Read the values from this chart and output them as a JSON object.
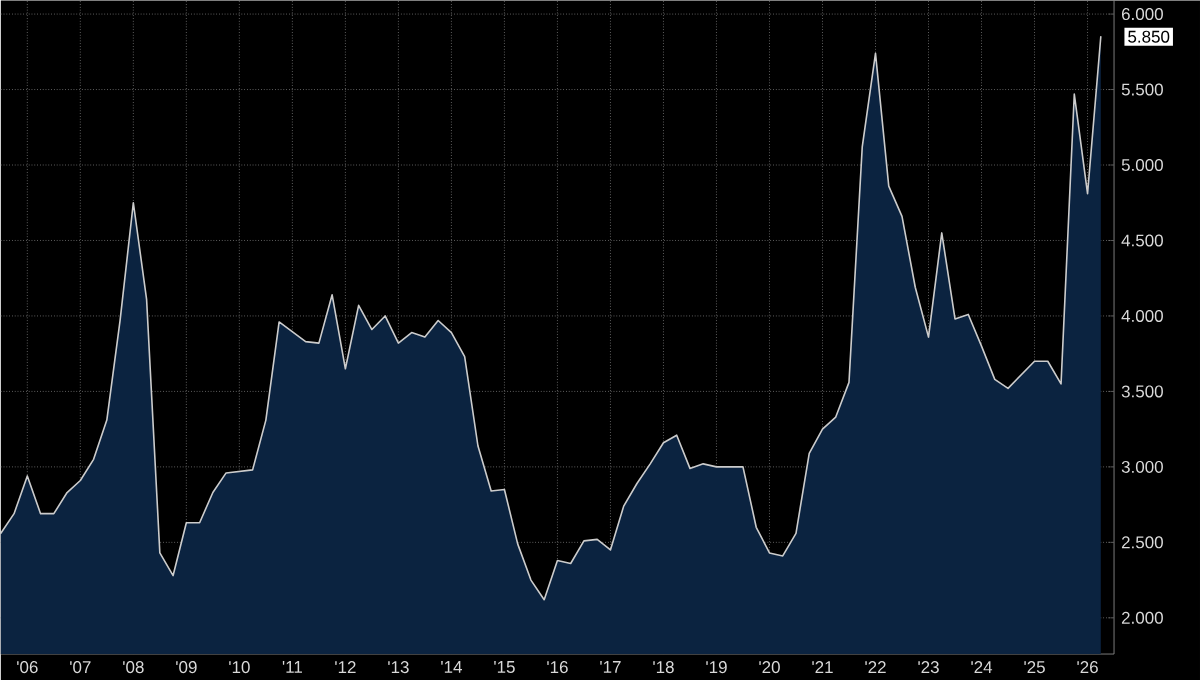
{
  "chart_data": {
    "type": "area",
    "x": [
      "2006-01",
      "2006-04",
      "2006-07",
      "2006-10",
      "2007-01",
      "2007-04",
      "2007-07",
      "2007-10",
      "2008-01",
      "2008-04",
      "2008-07",
      "2008-10",
      "2009-01",
      "2009-04",
      "2009-07",
      "2009-10",
      "2010-01",
      "2010-04",
      "2010-10",
      "2011-01",
      "2011-04",
      "2011-10",
      "2012-01",
      "2012-04",
      "2012-07",
      "2012-10",
      "2013-01",
      "2013-04",
      "2013-07",
      "2013-10",
      "2014-01",
      "2014-04",
      "2014-07",
      "2014-10",
      "2015-01",
      "2015-04",
      "2015-07",
      "2015-10",
      "2016-01",
      "2016-04",
      "2016-07",
      "2016-10",
      "2017-01",
      "2017-04",
      "2017-07",
      "2017-10",
      "2018-01",
      "2018-04",
      "2018-07",
      "2018-10",
      "2019-01",
      "2019-04",
      "2019-07",
      "2020-01",
      "2020-04",
      "2020-07",
      "2020-10",
      "2021-01",
      "2021-04",
      "2021-07",
      "2021-10",
      "2022-01",
      "2022-04",
      "2022-07",
      "2022-10",
      "2023-01",
      "2023-04",
      "2023-07",
      "2023-10",
      "2024-01",
      "2024-04",
      "2024-07",
      "2024-10",
      "2025-01",
      "2025-07",
      "2025-10",
      "2026-01",
      "2026-04",
      "2026-07",
      "2026-10"
    ],
    "series": [
      {
        "color": "#0b2340",
        "values": [
          2.56,
          2.69,
          2.94,
          2.69,
          2.69,
          2.83,
          2.91,
          3.05,
          3.31,
          3.97,
          4.75,
          4.11,
          2.43,
          2.28,
          2.63,
          2.63,
          2.83,
          2.96,
          2.98,
          3.31,
          3.96,
          3.83,
          3.82,
          4.14,
          3.65,
          4.07,
          3.91,
          4.0,
          3.82,
          3.89,
          3.86,
          3.97,
          3.89,
          3.73,
          3.14,
          2.84,
          2.85,
          2.49,
          2.25,
          2.12,
          2.38,
          2.36,
          2.51,
          2.52,
          2.45,
          2.74,
          2.89,
          3.02,
          3.16,
          3.21,
          2.99,
          3.02,
          3.0,
          3.0,
          2.6,
          2.43,
          2.41,
          2.56,
          3.09,
          3.25,
          3.33,
          3.56,
          5.12,
          5.74,
          4.86,
          4.66,
          4.19,
          3.86,
          4.55,
          3.98,
          4.01,
          3.8,
          3.58,
          3.52,
          3.7,
          3.7,
          3.55,
          5.47,
          4.81,
          5.85
        ]
      }
    ],
    "xlim": [
      "2006-01",
      "2027-01"
    ],
    "xticks": [
      {
        "value": "2006-07",
        "label": "'06"
      },
      {
        "value": "2007-07",
        "label": "'07"
      },
      {
        "value": "2008-07",
        "label": "'08"
      },
      {
        "value": "2009-07",
        "label": "'09"
      },
      {
        "value": "2010-07",
        "label": "'10"
      },
      {
        "value": "2011-07",
        "label": "'11"
      },
      {
        "value": "2012-07",
        "label": "'12"
      },
      {
        "value": "2013-07",
        "label": "'13"
      },
      {
        "value": "2014-07",
        "label": "'14"
      },
      {
        "value": "2015-07",
        "label": "'15"
      },
      {
        "value": "2016-07",
        "label": "'16"
      },
      {
        "value": "2017-07",
        "label": "'17"
      },
      {
        "value": "2018-07",
        "label": "'18"
      },
      {
        "value": "2019-07",
        "label": "'19"
      },
      {
        "value": "2020-07",
        "label": "'20"
      },
      {
        "value": "2021-07",
        "label": "'21"
      },
      {
        "value": "2022-07",
        "label": "'22"
      },
      {
        "value": "2023-07",
        "label": "'23"
      },
      {
        "value": "2024-07",
        "label": "'24"
      },
      {
        "value": "2025-07",
        "label": "'25"
      },
      {
        "value": "2026-07",
        "label": "'26"
      }
    ],
    "ylim": [
      1.76,
      6.09
    ],
    "yticks": [
      {
        "value": 2,
        "label": "2.000"
      },
      {
        "value": 2.5,
        "label": "2.500"
      },
      {
        "value": 3,
        "label": "3.000"
      },
      {
        "value": 3.5,
        "label": "3.500"
      },
      {
        "value": 4,
        "label": "4.000"
      },
      {
        "value": 4.5,
        "label": "4.500"
      },
      {
        "value": 5,
        "label": "5.000"
      },
      {
        "value": 5.5,
        "label": "5.500"
      },
      {
        "value": 6,
        "label": "6.000"
      }
    ],
    "grid": true,
    "annotations": [
      "5.850"
    ]
  }
}
